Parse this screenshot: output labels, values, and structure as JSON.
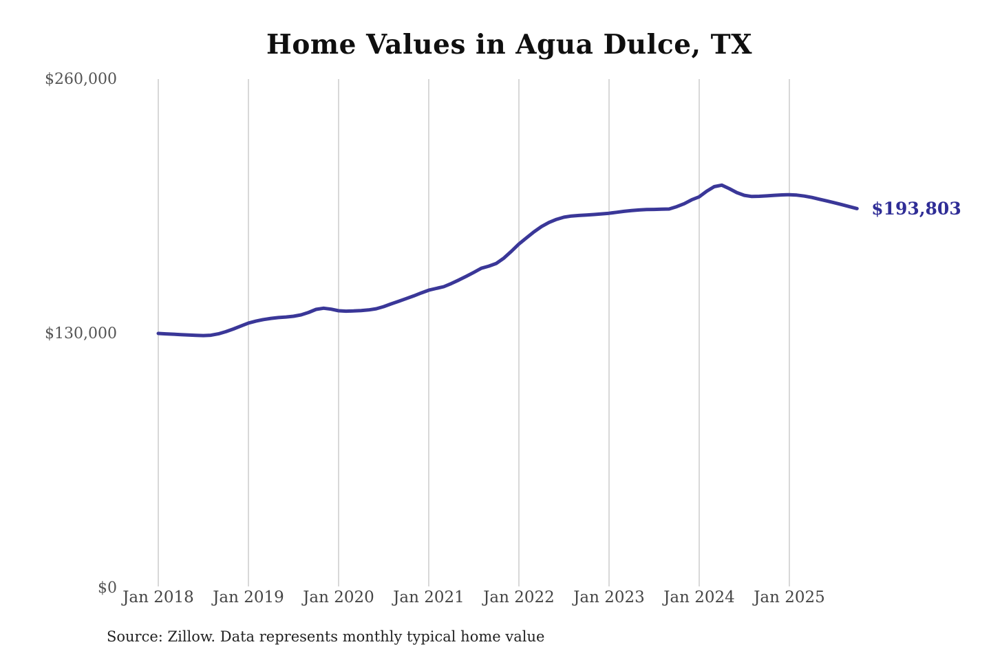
{
  "page": {
    "background": "#ffffff"
  },
  "chart_data": {
    "type": "line",
    "title": "Home Values in Agua Dulce, TX",
    "source": "Source: Zillow. Data represents monthly typical home value",
    "legend": "none",
    "grid": "vertical-only",
    "ylim": [
      0,
      260000
    ],
    "yticks": [
      {
        "label": "$260,000",
        "value": 260000
      },
      {
        "label": "$130,000",
        "value": 130000
      },
      {
        "label": "$0",
        "value": 0
      }
    ],
    "xticks": [
      {
        "label": "Jan 2018",
        "month_index": 0
      },
      {
        "label": "Jan 2019",
        "month_index": 12
      },
      {
        "label": "Jan 2020",
        "month_index": 24
      },
      {
        "label": "Jan 2021",
        "month_index": 36
      },
      {
        "label": "Jan 2022",
        "month_index": 48
      },
      {
        "label": "Jan 2023",
        "month_index": 60
      },
      {
        "label": "Jan 2024",
        "month_index": 72
      },
      {
        "label": "Jan 2025",
        "month_index": 84
      }
    ],
    "end_label": "$193,803",
    "end_value": 193803,
    "colors": {
      "line": "#3a3798",
      "end_label": "#2f2d96",
      "grid": "#cccccc",
      "title": "#0f0f0f",
      "y_axis_labels": "#545454",
      "x_axis_labels": "#454545",
      "source_text": "#222222"
    },
    "series": [
      {
        "name": "Monthly typical home value",
        "months": [
          "2018-01",
          "2018-02",
          "2018-03",
          "2018-04",
          "2018-05",
          "2018-06",
          "2018-07",
          "2018-08",
          "2018-09",
          "2018-10",
          "2018-11",
          "2018-12",
          "2019-01",
          "2019-02",
          "2019-03",
          "2019-04",
          "2019-05",
          "2019-06",
          "2019-07",
          "2019-08",
          "2019-09",
          "2019-10",
          "2019-11",
          "2019-12",
          "2020-01",
          "2020-02",
          "2020-03",
          "2020-04",
          "2020-05",
          "2020-06",
          "2020-07",
          "2020-08",
          "2020-09",
          "2020-10",
          "2020-11",
          "2020-12",
          "2021-01",
          "2021-02",
          "2021-03",
          "2021-04",
          "2021-05",
          "2021-06",
          "2021-07",
          "2021-08",
          "2021-09",
          "2021-10",
          "2021-11",
          "2021-12",
          "2022-01",
          "2022-02",
          "2022-03",
          "2022-04",
          "2022-05",
          "2022-06",
          "2022-07",
          "2022-08",
          "2022-09",
          "2022-10",
          "2022-11",
          "2022-12",
          "2023-01",
          "2023-02",
          "2023-03",
          "2023-04",
          "2023-05",
          "2023-06",
          "2023-07",
          "2023-08",
          "2023-09",
          "2023-10",
          "2023-11",
          "2023-12",
          "2024-01",
          "2024-02",
          "2024-03",
          "2024-04",
          "2024-05",
          "2024-06",
          "2024-07",
          "2024-08",
          "2024-09",
          "2024-10",
          "2024-11",
          "2024-12",
          "2025-01",
          "2025-02",
          "2025-03",
          "2025-04",
          "2025-05",
          "2025-06",
          "2025-07",
          "2025-08",
          "2025-09",
          "2025-10"
        ],
        "values": [
          130000,
          129800,
          129600,
          129400,
          129200,
          129000,
          128900,
          129100,
          129800,
          130900,
          132300,
          133800,
          135300,
          136300,
          137100,
          137700,
          138100,
          138400,
          138800,
          139500,
          140700,
          142300,
          142900,
          142400,
          141600,
          141400,
          141500,
          141700,
          142000,
          142600,
          143700,
          145100,
          146400,
          147800,
          149200,
          150700,
          152100,
          153000,
          153900,
          155500,
          157300,
          159200,
          161200,
          163300,
          164400,
          165800,
          168500,
          172000,
          175700,
          178800,
          181900,
          184600,
          186700,
          188300,
          189400,
          190000,
          190300,
          190500,
          190800,
          191100,
          191400,
          191900,
          192400,
          192800,
          193100,
          193300,
          193400,
          193500,
          193600,
          194800,
          196300,
          198300,
          199800,
          202700,
          205000,
          205800,
          204000,
          202000,
          200600,
          200000,
          200100,
          200300,
          200600,
          200800,
          200900,
          200700,
          200200,
          199500,
          198600,
          197700,
          196800,
          195800,
          194800,
          193803
        ]
      }
    ]
  }
}
